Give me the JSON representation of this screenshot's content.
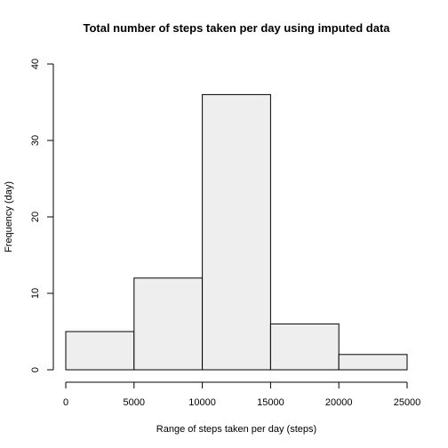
{
  "chart_data": {
    "type": "bar",
    "title": "Total number of steps taken per day using imputed data",
    "xlabel": "Range of steps taken per day (steps)",
    "ylabel": "Frequency (day)",
    "bins": [
      {
        "start": 0,
        "end": 5000,
        "value": 5
      },
      {
        "start": 5000,
        "end": 10000,
        "value": 12
      },
      {
        "start": 10000,
        "end": 15000,
        "value": 36
      },
      {
        "start": 15000,
        "end": 20000,
        "value": 6
      },
      {
        "start": 20000,
        "end": 25000,
        "value": 2
      }
    ],
    "xlim": [
      0,
      25000
    ],
    "ylim": [
      0,
      40
    ],
    "xticks": [
      0,
      5000,
      10000,
      15000,
      20000,
      25000
    ],
    "yticks": [
      0,
      10,
      20,
      30,
      40
    ],
    "xtick_labels": [
      "0",
      "5000",
      "10000",
      "15000",
      "20000",
      "25000"
    ],
    "ytick_labels": [
      "0",
      "10",
      "20",
      "30",
      "40"
    ],
    "bar_fill": "#eeeeee",
    "bar_stroke": "#000000",
    "grid": false
  }
}
